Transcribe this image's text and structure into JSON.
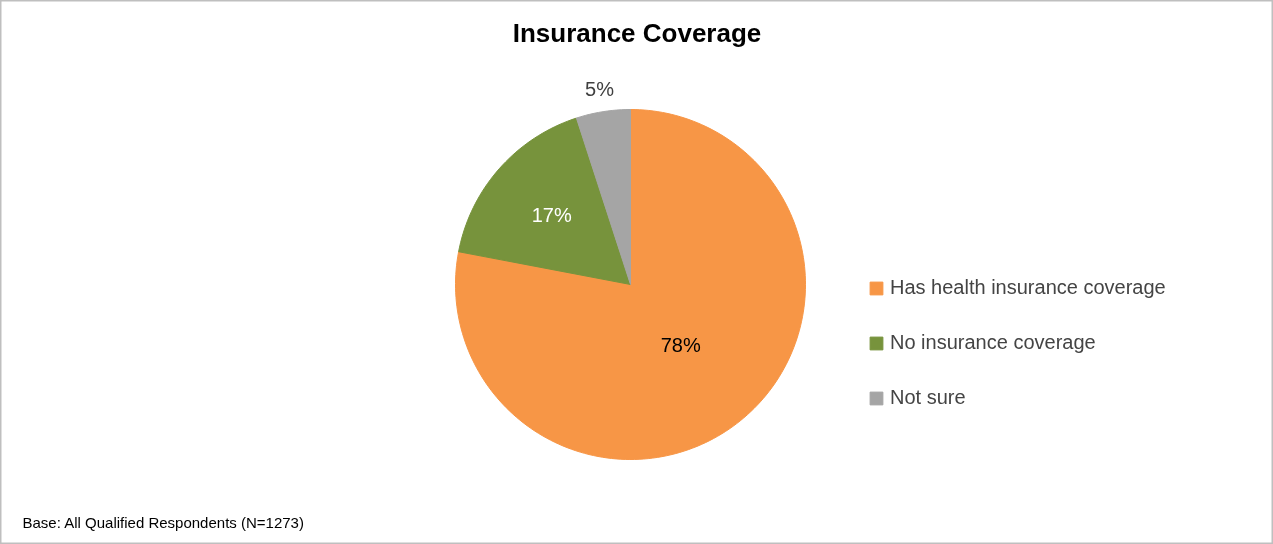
{
  "chart_data": {
    "type": "pie",
    "title": "Insurance Coverage",
    "categories": [
      "Has health insurance coverage",
      "No insurance coverage",
      "Not sure"
    ],
    "values": [
      78,
      17,
      5
    ],
    "colors": [
      "#f79646",
      "#77933c",
      "#a5a5a5"
    ],
    "value_labels": [
      "78%",
      "17%",
      "5%"
    ],
    "legend": "right",
    "annotations": [
      "Base: All Qualified Respondents (N=1273)"
    ]
  }
}
